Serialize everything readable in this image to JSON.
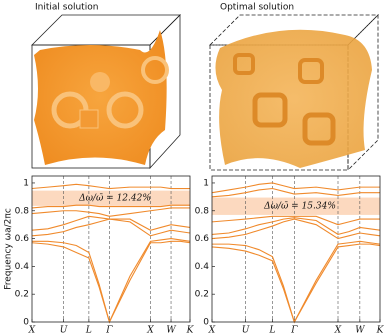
{
  "chart_data": [
    {
      "type": "line",
      "title": "Initial solution",
      "ylabel": "Frequency ωa/2πc",
      "annotation": "Δω/ω̄ = 12.42%",
      "color": "#f08a2c",
      "band_gap": [
        0.835,
        0.945
      ],
      "band_gap_color": "#fcd9bf",
      "xlim": [
        0,
        1
      ],
      "ylim": [
        0,
        1.05
      ],
      "xticks": [
        {
          "value": 0,
          "label": "X"
        },
        {
          "value": 0.2,
          "label": "U"
        },
        {
          "value": 0.36,
          "label": "L"
        },
        {
          "value": 0.49,
          "label": "Γ"
        },
        {
          "value": 0.75,
          "label": "X"
        },
        {
          "value": 0.88,
          "label": "W"
        },
        {
          "value": 1,
          "label": "K"
        }
      ],
      "yticks": [
        0,
        0.2,
        0.4,
        0.6,
        0.8,
        1
      ],
      "x": [
        0,
        0.1,
        0.2,
        0.28,
        0.36,
        0.425,
        0.49,
        0.62,
        0.75,
        0.815,
        0.88,
        0.94,
        1
      ],
      "series": [
        {
          "values": [
            0.57,
            0.56,
            0.54,
            0.5,
            0.46,
            0.25,
            0,
            0.3,
            0.57,
            0.57,
            0.58,
            0.58,
            0.57
          ]
        },
        {
          "values": [
            0.58,
            0.58,
            0.57,
            0.55,
            0.5,
            0.27,
            0,
            0.33,
            0.58,
            0.59,
            0.6,
            0.59,
            0.58
          ]
        },
        {
          "values": [
            0.62,
            0.63,
            0.65,
            0.68,
            0.7,
            0.72,
            0.74,
            0.72,
            0.62,
            0.64,
            0.66,
            0.65,
            0.64
          ]
        },
        {
          "values": [
            0.66,
            0.67,
            0.7,
            0.73,
            0.76,
            0.75,
            0.74,
            0.74,
            0.66,
            0.68,
            0.7,
            0.69,
            0.68
          ]
        },
        {
          "values": [
            0.78,
            0.79,
            0.8,
            0.8,
            0.79,
            0.78,
            0.76,
            0.78,
            0.8,
            0.81,
            0.82,
            0.82,
            0.82
          ]
        },
        {
          "values": [
            0.82,
            0.83,
            0.83,
            0.84,
            0.84,
            0.83,
            0.83,
            0.83,
            0.83,
            0.83,
            0.84,
            0.84,
            0.84
          ]
        },
        {
          "values": [
            0.96,
            0.97,
            0.98,
            0.99,
            0.98,
            0.97,
            0.96,
            0.97,
            0.97,
            0.97,
            0.96,
            0.96,
            0.96
          ]
        }
      ]
    },
    {
      "type": "line",
      "title": "Optimal solution",
      "annotation": "Δω/ω̄ = 15.34%",
      "color": "#f08a2c",
      "band_gap": [
        0.77,
        0.895
      ],
      "band_gap_color": "#fcd9bf",
      "xlim": [
        0,
        1
      ],
      "ylim": [
        0,
        1.05
      ],
      "xticks": [
        {
          "value": 0,
          "label": "X"
        },
        {
          "value": 0.2,
          "label": "U"
        },
        {
          "value": 0.36,
          "label": "L"
        },
        {
          "value": 0.49,
          "label": "Γ"
        },
        {
          "value": 0.75,
          "label": "X"
        },
        {
          "value": 0.88,
          "label": "W"
        },
        {
          "value": 1,
          "label": "K"
        }
      ],
      "yticks": [
        0,
        0.2,
        0.4,
        0.6,
        0.8,
        1
      ],
      "x": [
        0,
        0.1,
        0.2,
        0.28,
        0.36,
        0.425,
        0.49,
        0.62,
        0.75,
        0.815,
        0.88,
        0.94,
        1
      ],
      "series": [
        {
          "values": [
            0.54,
            0.53,
            0.51,
            0.48,
            0.44,
            0.24,
            0,
            0.28,
            0.54,
            0.55,
            0.56,
            0.56,
            0.55
          ]
        },
        {
          "values": [
            0.56,
            0.56,
            0.55,
            0.52,
            0.47,
            0.26,
            0,
            0.3,
            0.56,
            0.57,
            0.58,
            0.57,
            0.56
          ]
        },
        {
          "values": [
            0.6,
            0.61,
            0.63,
            0.66,
            0.69,
            0.72,
            0.74,
            0.7,
            0.6,
            0.62,
            0.64,
            0.63,
            0.62
          ]
        },
        {
          "values": [
            0.63,
            0.64,
            0.67,
            0.7,
            0.72,
            0.74,
            0.75,
            0.73,
            0.63,
            0.65,
            0.68,
            0.67,
            0.66
          ]
        },
        {
          "values": [
            0.72,
            0.73,
            0.74,
            0.75,
            0.76,
            0.76,
            0.76,
            0.76,
            0.7,
            0.72,
            0.74,
            0.74,
            0.74
          ]
        },
        {
          "values": [
            0.9,
            0.91,
            0.93,
            0.95,
            0.96,
            0.94,
            0.92,
            0.93,
            0.91,
            0.92,
            0.93,
            0.93,
            0.93
          ]
        },
        {
          "values": [
            0.93,
            0.95,
            0.97,
            0.99,
            1.0,
            0.98,
            0.96,
            0.97,
            0.95,
            0.96,
            0.97,
            0.97,
            0.97
          ]
        }
      ]
    }
  ]
}
